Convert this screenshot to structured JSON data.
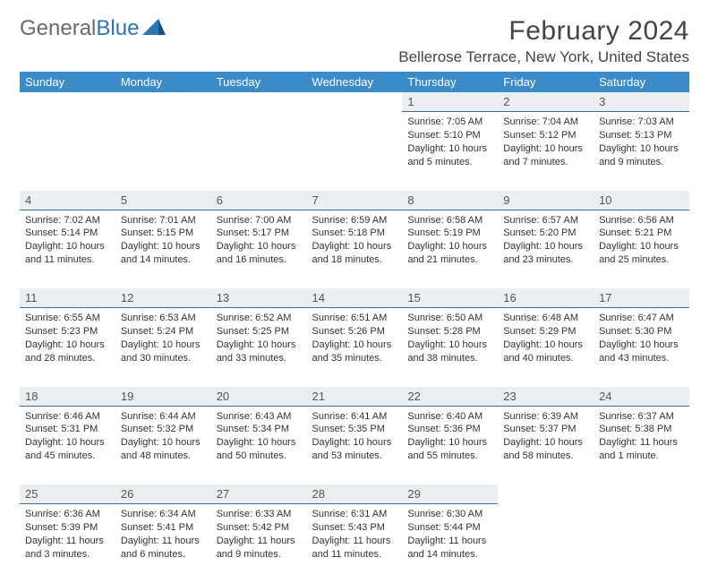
{
  "logo": {
    "text1": "General",
    "text2": "Blue"
  },
  "title": "February 2024",
  "location": "Bellerose Terrace, New York, United States",
  "colors": {
    "header_bg": "#3b8bc9",
    "header_text": "#ffffff",
    "daynum_bg": "#eceff1",
    "daynum_border": "#3b6ea5",
    "body_text": "#333333",
    "logo_gray": "#6a6a6a",
    "logo_blue": "#2e75b6"
  },
  "day_headers": [
    "Sunday",
    "Monday",
    "Tuesday",
    "Wednesday",
    "Thursday",
    "Friday",
    "Saturday"
  ],
  "weeks": [
    [
      null,
      null,
      null,
      null,
      {
        "n": "1",
        "sr": "7:05 AM",
        "ss": "5:10 PM",
        "dl": "10 hours and 5 minutes."
      },
      {
        "n": "2",
        "sr": "7:04 AM",
        "ss": "5:12 PM",
        "dl": "10 hours and 7 minutes."
      },
      {
        "n": "3",
        "sr": "7:03 AM",
        "ss": "5:13 PM",
        "dl": "10 hours and 9 minutes."
      }
    ],
    [
      {
        "n": "4",
        "sr": "7:02 AM",
        "ss": "5:14 PM",
        "dl": "10 hours and 11 minutes."
      },
      {
        "n": "5",
        "sr": "7:01 AM",
        "ss": "5:15 PM",
        "dl": "10 hours and 14 minutes."
      },
      {
        "n": "6",
        "sr": "7:00 AM",
        "ss": "5:17 PM",
        "dl": "10 hours and 16 minutes."
      },
      {
        "n": "7",
        "sr": "6:59 AM",
        "ss": "5:18 PM",
        "dl": "10 hours and 18 minutes."
      },
      {
        "n": "8",
        "sr": "6:58 AM",
        "ss": "5:19 PM",
        "dl": "10 hours and 21 minutes."
      },
      {
        "n": "9",
        "sr": "6:57 AM",
        "ss": "5:20 PM",
        "dl": "10 hours and 23 minutes."
      },
      {
        "n": "10",
        "sr": "6:56 AM",
        "ss": "5:21 PM",
        "dl": "10 hours and 25 minutes."
      }
    ],
    [
      {
        "n": "11",
        "sr": "6:55 AM",
        "ss": "5:23 PM",
        "dl": "10 hours and 28 minutes."
      },
      {
        "n": "12",
        "sr": "6:53 AM",
        "ss": "5:24 PM",
        "dl": "10 hours and 30 minutes."
      },
      {
        "n": "13",
        "sr": "6:52 AM",
        "ss": "5:25 PM",
        "dl": "10 hours and 33 minutes."
      },
      {
        "n": "14",
        "sr": "6:51 AM",
        "ss": "5:26 PM",
        "dl": "10 hours and 35 minutes."
      },
      {
        "n": "15",
        "sr": "6:50 AM",
        "ss": "5:28 PM",
        "dl": "10 hours and 38 minutes."
      },
      {
        "n": "16",
        "sr": "6:48 AM",
        "ss": "5:29 PM",
        "dl": "10 hours and 40 minutes."
      },
      {
        "n": "17",
        "sr": "6:47 AM",
        "ss": "5:30 PM",
        "dl": "10 hours and 43 minutes."
      }
    ],
    [
      {
        "n": "18",
        "sr": "6:46 AM",
        "ss": "5:31 PM",
        "dl": "10 hours and 45 minutes."
      },
      {
        "n": "19",
        "sr": "6:44 AM",
        "ss": "5:32 PM",
        "dl": "10 hours and 48 minutes."
      },
      {
        "n": "20",
        "sr": "6:43 AM",
        "ss": "5:34 PM",
        "dl": "10 hours and 50 minutes."
      },
      {
        "n": "21",
        "sr": "6:41 AM",
        "ss": "5:35 PM",
        "dl": "10 hours and 53 minutes."
      },
      {
        "n": "22",
        "sr": "6:40 AM",
        "ss": "5:36 PM",
        "dl": "10 hours and 55 minutes."
      },
      {
        "n": "23",
        "sr": "6:39 AM",
        "ss": "5:37 PM",
        "dl": "10 hours and 58 minutes."
      },
      {
        "n": "24",
        "sr": "6:37 AM",
        "ss": "5:38 PM",
        "dl": "11 hours and 1 minute."
      }
    ],
    [
      {
        "n": "25",
        "sr": "6:36 AM",
        "ss": "5:39 PM",
        "dl": "11 hours and 3 minutes."
      },
      {
        "n": "26",
        "sr": "6:34 AM",
        "ss": "5:41 PM",
        "dl": "11 hours and 6 minutes."
      },
      {
        "n": "27",
        "sr": "6:33 AM",
        "ss": "5:42 PM",
        "dl": "11 hours and 9 minutes."
      },
      {
        "n": "28",
        "sr": "6:31 AM",
        "ss": "5:43 PM",
        "dl": "11 hours and 11 minutes."
      },
      {
        "n": "29",
        "sr": "6:30 AM",
        "ss": "5:44 PM",
        "dl": "11 hours and 14 minutes."
      },
      null,
      null
    ]
  ],
  "labels": {
    "sunrise": "Sunrise:",
    "sunset": "Sunset:",
    "daylight": "Daylight:"
  }
}
